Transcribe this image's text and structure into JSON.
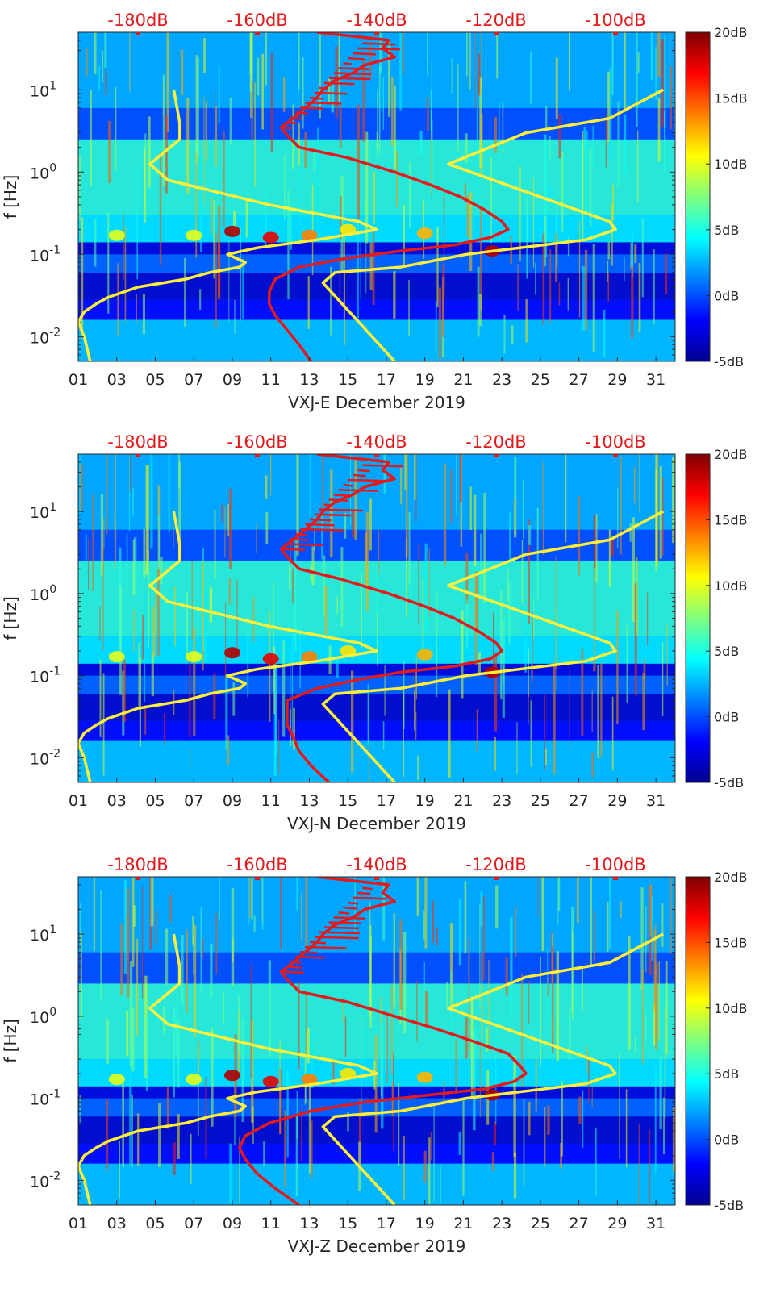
{
  "figure": {
    "colormap_stops": [
      "#00008f",
      "#0000ff",
      "#0080ff",
      "#00ffff",
      "#80ff80",
      "#ffff00",
      "#ff8000",
      "#ff0000",
      "#800000"
    ],
    "trace_colors": {
      "red": "#e31a1c",
      "yellow": "#ffef3a"
    }
  },
  "chart_data": [
    {
      "type": "heatmap",
      "title": "",
      "xlabel": "VXJ-E December 2019",
      "ylabel": "f [Hz]",
      "xlim": [
        1,
        32
      ],
      "ylim": [
        0.005,
        50
      ],
      "yscale": "log",
      "x_tick_labels": [
        "01",
        "03",
        "05",
        "07",
        "09",
        "11",
        "13",
        "15",
        "17",
        "19",
        "21",
        "23",
        "25",
        "27",
        "29",
        "31"
      ],
      "y_tick_labels": [
        {
          "value": 0.01,
          "mant": "10",
          "exp": "-2"
        },
        {
          "value": 0.1,
          "mant": "10",
          "exp": "-1"
        },
        {
          "value": 1,
          "mant": "10",
          "exp": "0"
        },
        {
          "value": 10,
          "mant": "10",
          "exp": "1"
        }
      ],
      "top_axis": {
        "xlim": [
          -190,
          -90
        ],
        "tick_labels": [
          "-180dB",
          "-160dB",
          "-140dB",
          "-120dB",
          "-100dB"
        ],
        "tick_values": [
          -180,
          -160,
          -140,
          -120,
          -100
        ]
      },
      "colorbar": {
        "range": [
          -5,
          20
        ],
        "tick_labels": [
          "20dB",
          "15dB",
          "10dB",
          "5dB",
          "0dB",
          "-5dB"
        ],
        "tick_values": [
          20,
          15,
          10,
          5,
          0,
          -5
        ]
      },
      "series": [
        {
          "name": "station spectrum (red)",
          "f": [
            0.005,
            0.008,
            0.012,
            0.018,
            0.025,
            0.035,
            0.05,
            0.07,
            0.09,
            0.11,
            0.13,
            0.16,
            0.2,
            0.25,
            0.35,
            0.5,
            0.7,
            1.0,
            1.5,
            2.0,
            2.8,
            3.5,
            4.5,
            6,
            8,
            10,
            13,
            16,
            20,
            25,
            32,
            40,
            50
          ],
          "db": [
            -151,
            -153,
            -155,
            -157,
            -158,
            -158,
            -157,
            -153,
            -145,
            -136,
            -127,
            -121,
            -118,
            -119,
            -122,
            -126,
            -131,
            -137,
            -145,
            -153,
            -155,
            -156,
            -154,
            -152,
            -150,
            -149,
            -147,
            -144,
            -142,
            -137,
            -139,
            -138,
            -150
          ]
        },
        {
          "name": "noise model (left yellow)",
          "f": [
            0.005,
            0.01,
            0.015,
            0.02,
            0.025,
            0.03,
            0.04,
            0.05,
            0.06,
            0.07,
            0.08,
            0.1,
            0.12,
            0.15,
            0.2,
            0.25,
            0.4,
            0.8,
            1.25,
            2.5,
            4.0,
            10.0
          ],
          "db": [
            -188,
            -189,
            -190,
            -189,
            -187,
            -185,
            -180,
            -172,
            -168,
            -163,
            -162,
            -165,
            -160,
            -150,
            -140,
            -143,
            -158,
            -175,
            -178,
            -173,
            -173,
            -174
          ]
        },
        {
          "name": "noise model (right yellow)",
          "f": [
            0.005,
            0.045,
            0.06,
            0.07,
            0.1,
            0.15,
            0.2,
            0.25,
            1.25,
            3.0,
            4.5,
            10.0
          ],
          "db": [
            -137,
            -149,
            -147,
            -136,
            -125,
            -105,
            -100,
            -101,
            -128,
            -115,
            -101,
            -92
          ]
        }
      ]
    },
    {
      "type": "heatmap",
      "title": "",
      "xlabel": "VXJ-N December 2019",
      "ylabel": "f [Hz]",
      "xlim": [
        1,
        32
      ],
      "ylim": [
        0.005,
        50
      ],
      "yscale": "log",
      "x_tick_labels": [
        "01",
        "03",
        "05",
        "07",
        "09",
        "11",
        "13",
        "15",
        "17",
        "19",
        "21",
        "23",
        "25",
        "27",
        "29",
        "31"
      ],
      "y_tick_labels": [
        {
          "value": 0.01,
          "mant": "10",
          "exp": "-2"
        },
        {
          "value": 0.1,
          "mant": "10",
          "exp": "-1"
        },
        {
          "value": 1,
          "mant": "10",
          "exp": "0"
        },
        {
          "value": 10,
          "mant": "10",
          "exp": "1"
        }
      ],
      "top_axis": {
        "xlim": [
          -190,
          -90
        ],
        "tick_labels": [
          "-180dB",
          "-160dB",
          "-140dB",
          "-120dB",
          "-100dB"
        ],
        "tick_values": [
          -180,
          -160,
          -140,
          -120,
          -100
        ]
      },
      "colorbar": {
        "range": [
          -5,
          20
        ],
        "tick_labels": [
          "20dB",
          "15dB",
          "10dB",
          "5dB",
          "0dB",
          "-5dB"
        ],
        "tick_values": [
          20,
          15,
          10,
          5,
          0,
          -5
        ]
      },
      "series": [
        {
          "name": "station spectrum (red)",
          "f": [
            0.005,
            0.008,
            0.012,
            0.018,
            0.025,
            0.035,
            0.05,
            0.07,
            0.09,
            0.11,
            0.13,
            0.16,
            0.2,
            0.25,
            0.35,
            0.5,
            0.7,
            1.0,
            1.5,
            2.0,
            2.8,
            3.5,
            4.5,
            6,
            8,
            10,
            13,
            16,
            20,
            25,
            32,
            40,
            50
          ],
          "db": [
            -148,
            -151,
            -153,
            -154,
            -155,
            -155,
            -155,
            -150,
            -143,
            -136,
            -127,
            -121,
            -119,
            -120,
            -123,
            -127,
            -132,
            -138,
            -146,
            -153,
            -155,
            -156,
            -154,
            -152,
            -150,
            -149,
            -147,
            -144,
            -142,
            -137,
            -139,
            -138,
            -150
          ]
        },
        {
          "name": "noise model (left yellow)",
          "f": [
            0.005,
            0.01,
            0.015,
            0.02,
            0.025,
            0.03,
            0.04,
            0.05,
            0.06,
            0.07,
            0.08,
            0.1,
            0.12,
            0.15,
            0.2,
            0.25,
            0.4,
            0.8,
            1.25,
            2.5,
            4.0,
            10.0
          ],
          "db": [
            -188,
            -189,
            -190,
            -189,
            -187,
            -185,
            -180,
            -172,
            -168,
            -163,
            -162,
            -165,
            -160,
            -150,
            -140,
            -143,
            -158,
            -175,
            -178,
            -173,
            -173,
            -174
          ]
        },
        {
          "name": "noise model (right yellow)",
          "f": [
            0.005,
            0.045,
            0.06,
            0.07,
            0.1,
            0.15,
            0.2,
            0.25,
            1.25,
            3.0,
            4.5,
            10.0
          ],
          "db": [
            -137,
            -149,
            -147,
            -136,
            -125,
            -105,
            -100,
            -101,
            -128,
            -115,
            -101,
            -92
          ]
        }
      ]
    },
    {
      "type": "heatmap",
      "title": "",
      "xlabel": "VXJ-Z December 2019",
      "ylabel": "f [Hz]",
      "xlim": [
        1,
        32
      ],
      "ylim": [
        0.005,
        50
      ],
      "yscale": "log",
      "x_tick_labels": [
        "01",
        "03",
        "05",
        "07",
        "09",
        "11",
        "13",
        "15",
        "17",
        "19",
        "21",
        "23",
        "25",
        "27",
        "29",
        "31"
      ],
      "y_tick_labels": [
        {
          "value": 0.01,
          "mant": "10",
          "exp": "-2"
        },
        {
          "value": 0.1,
          "mant": "10",
          "exp": "-1"
        },
        {
          "value": 1,
          "mant": "10",
          "exp": "0"
        },
        {
          "value": 10,
          "mant": "10",
          "exp": "1"
        }
      ],
      "top_axis": {
        "xlim": [
          -190,
          -90
        ],
        "tick_labels": [
          "-180dB",
          "-160dB",
          "-140dB",
          "-120dB",
          "-100dB"
        ],
        "tick_values": [
          -180,
          -160,
          -140,
          -120,
          -100
        ]
      },
      "colorbar": {
        "range": [
          -5,
          20
        ],
        "tick_labels": [
          "20dB",
          "15dB",
          "10dB",
          "5dB",
          "0dB",
          "-5dB"
        ],
        "tick_values": [
          20,
          15,
          10,
          5,
          0,
          -5
        ]
      },
      "series": [
        {
          "name": "station spectrum (red)",
          "f": [
            0.005,
            0.008,
            0.012,
            0.018,
            0.025,
            0.035,
            0.05,
            0.07,
            0.09,
            0.11,
            0.13,
            0.16,
            0.2,
            0.25,
            0.35,
            0.5,
            0.7,
            1.0,
            1.5,
            2.0,
            2.8,
            3.5,
            4.5,
            6,
            8,
            10,
            13,
            16,
            20,
            25,
            32,
            40,
            50
          ],
          "db": [
            -153,
            -157,
            -160,
            -162,
            -163,
            -162,
            -158,
            -151,
            -142,
            -131,
            -122,
            -117,
            -115,
            -116,
            -118,
            -124,
            -130,
            -137,
            -145,
            -153,
            -155,
            -156,
            -154,
            -152,
            -150,
            -149,
            -147,
            -144,
            -142,
            -137,
            -139,
            -138,
            -150
          ]
        },
        {
          "name": "noise model (left yellow)",
          "f": [
            0.005,
            0.01,
            0.015,
            0.02,
            0.025,
            0.03,
            0.04,
            0.05,
            0.06,
            0.07,
            0.08,
            0.1,
            0.12,
            0.15,
            0.2,
            0.25,
            0.4,
            0.8,
            1.25,
            2.5,
            4.0,
            10.0
          ],
          "db": [
            -188,
            -189,
            -190,
            -189,
            -187,
            -185,
            -180,
            -172,
            -168,
            -163,
            -162,
            -165,
            -160,
            -150,
            -140,
            -143,
            -158,
            -175,
            -178,
            -173,
            -173,
            -174
          ]
        },
        {
          "name": "noise model (right yellow)",
          "f": [
            0.005,
            0.045,
            0.06,
            0.07,
            0.1,
            0.15,
            0.2,
            0.25,
            1.25,
            3.0,
            4.5,
            10.0
          ],
          "db": [
            -137,
            -149,
            -147,
            -136,
            -125,
            -105,
            -100,
            -101,
            -128,
            -115,
            -101,
            -92
          ]
        }
      ]
    }
  ]
}
